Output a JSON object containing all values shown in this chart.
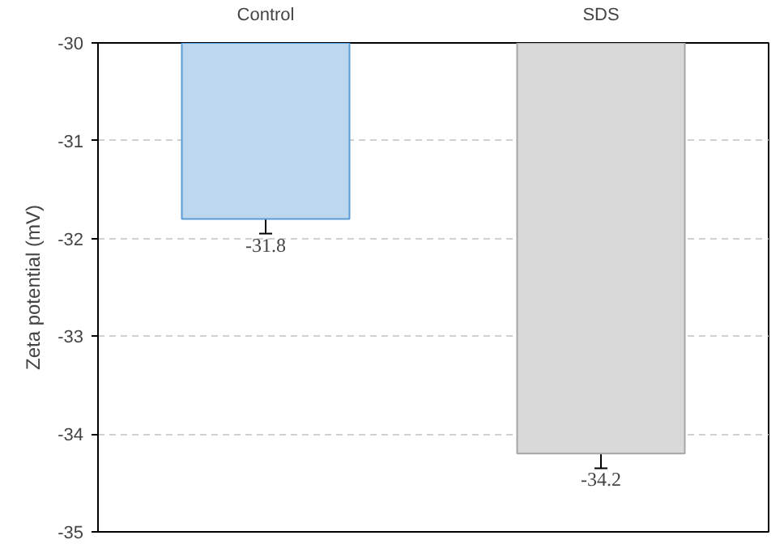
{
  "chart_data": {
    "type": "bar",
    "ylabel": "Zeta potential (mV)",
    "categories": [
      "Control",
      "SDS"
    ],
    "values": [
      -31.8,
      -34.2
    ],
    "colors": [
      "#bdd7ee",
      "#d9d9d9"
    ],
    "errors": [
      0.15,
      0.15
    ],
    "data_labels": true,
    "ylim": [
      -35,
      -30
    ],
    "yticks": [
      -35,
      -34,
      -33,
      -32,
      -31,
      -30
    ],
    "grid": "y"
  }
}
